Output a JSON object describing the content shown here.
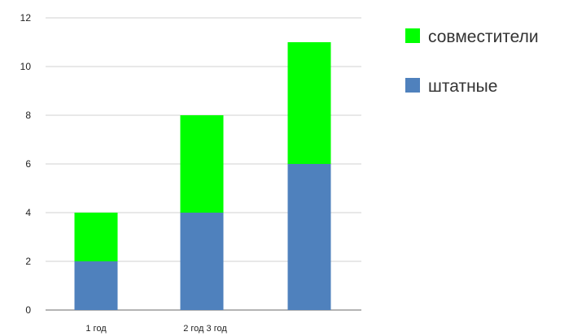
{
  "chart_data": {
    "type": "bar",
    "stacked": true,
    "categories": [
      "1 год",
      "",
      ""
    ],
    "category_label_text": "2 год 3 год",
    "series": [
      {
        "name": "штатные",
        "values": [
          2,
          4,
          6
        ],
        "color": "#4f81bd"
      },
      {
        "name": "совместители",
        "values": [
          2,
          4,
          5
        ],
        "color": "#00ff00"
      }
    ],
    "title": "",
    "xlabel": "",
    "ylabel": "",
    "ylim": [
      0,
      12
    ],
    "yticks": [
      0,
      2,
      4,
      6,
      8,
      10,
      12
    ],
    "grid": true,
    "legend_position": "right",
    "legend_order": [
      "совместители",
      "штатные"
    ]
  }
}
